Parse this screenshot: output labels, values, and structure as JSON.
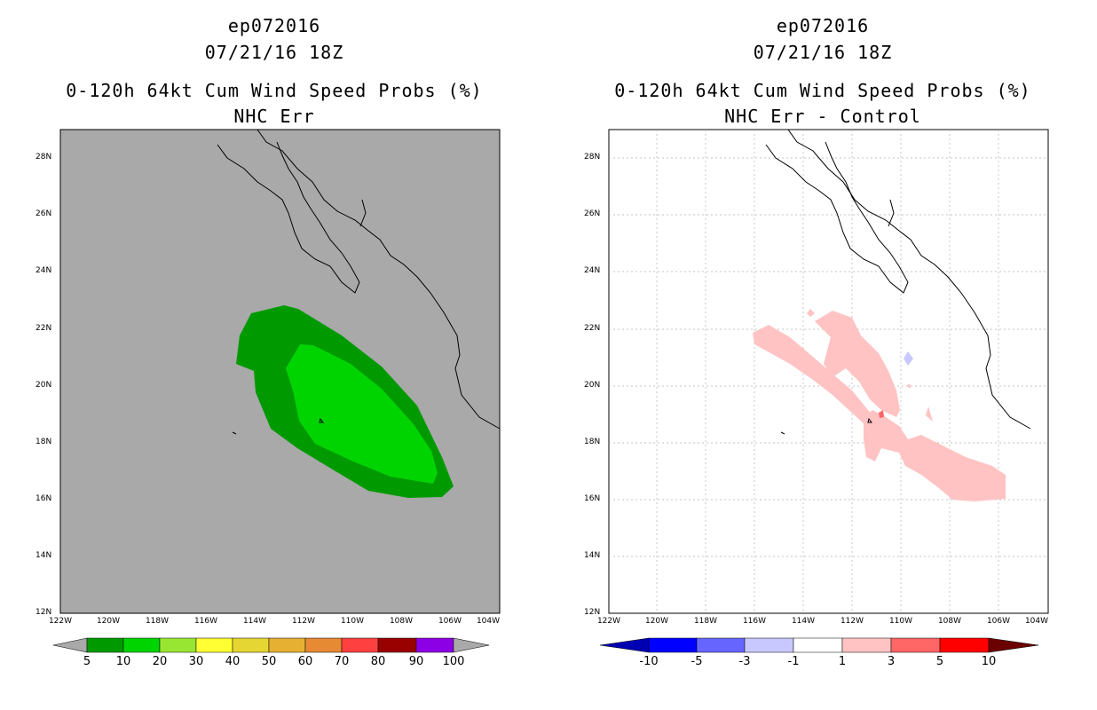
{
  "left": {
    "title_storm": "ep072016",
    "title_time": "07/21/16 18Z",
    "title_product": "0-120h 64kt Cum Wind Speed Probs (%)",
    "title_subtitle": "NHC Err",
    "background_color": "#a9a9a9",
    "colorbar_labels": [
      "5",
      "10",
      "20",
      "30",
      "40",
      "50",
      "60",
      "70",
      "80",
      "90",
      "100"
    ],
    "colorbar_colors": [
      "#009a00",
      "#00d400",
      "#99e632",
      "#ffff33",
      "#e5d633",
      "#e6b033",
      "#e68a33",
      "#ff4040",
      "#990000",
      "#8c00e6"
    ]
  },
  "right": {
    "title_storm": "ep072016",
    "title_time": "07/21/16 18Z",
    "title_product": "0-120h 64kt Cum Wind Speed Probs (%)",
    "title_subtitle": "NHC Err - Control",
    "background_color": "#ffffff",
    "colorbar_labels": [
      "-10",
      "-5",
      "-3",
      "-1",
      "1",
      "3",
      "5",
      "10"
    ],
    "colorbar_colors": [
      "#0000b3",
      "#0000ff",
      "#6666ff",
      "#c8c8ff",
      "#ffffff",
      "#ffc3c3",
      "#ff6666",
      "#ff0000",
      "#b30000",
      "#6b0000"
    ]
  },
  "lat_labels": [
    "28N",
    "26N",
    "24N",
    "22N",
    "20N",
    "18N",
    "16N",
    "14N",
    "12N"
  ],
  "lon_labels": [
    "122W",
    "120W",
    "118W",
    "116W",
    "114W",
    "112W",
    "110W",
    "108W",
    "106W",
    "104W"
  ]
}
